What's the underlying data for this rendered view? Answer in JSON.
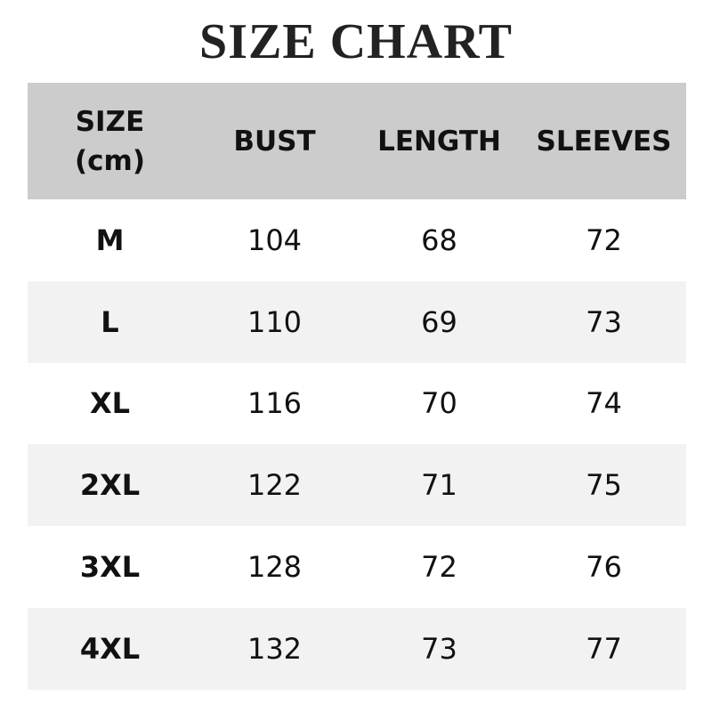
{
  "title": "SIZE CHART",
  "table": {
    "headers": [
      "SIZE",
      "(cm)",
      "BUST",
      "LENGTH",
      "SLEEVES"
    ],
    "rows": [
      [
        "M",
        "104",
        "68",
        "72"
      ],
      [
        "L",
        "110",
        "69",
        "73"
      ],
      [
        "XL",
        "116",
        "70",
        "74"
      ],
      [
        "2XL",
        "122",
        "71",
        "75"
      ],
      [
        "3XL",
        "128",
        "72",
        "76"
      ],
      [
        "4XL",
        "132",
        "73",
        "77"
      ]
    ]
  },
  "colors": {
    "header_bg": "#cccccc",
    "alt_row_bg": "#f2f2f2"
  }
}
